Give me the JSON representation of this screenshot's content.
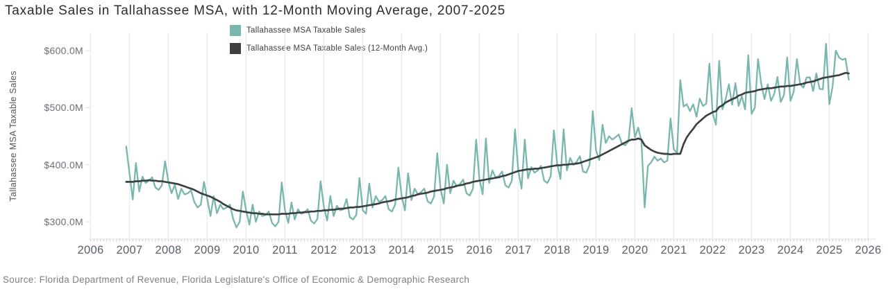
{
  "title": "Taxable Sales in Tallahassee MSA, with 12-Month Moving Average, 2007-2025",
  "source": "Source: Florida Department of Revenue, Florida Legislature's Office of Economic & Demographic Research",
  "colors": {
    "sales_line": "#79b6ae",
    "avg_line": "#3d4043",
    "gridline": "#eaeaed",
    "axis_line": "#dddde1"
  },
  "legend": [
    {
      "label": "Tallahassee MSA Taxable Sales",
      "color": "#79b6ae"
    },
    {
      "label": "Tallahassee MSA Taxable Sales (12-Month Avg.)",
      "color": "#3d4043"
    }
  ],
  "y_axis": {
    "title": "Tallahassee MSA Taxable Sales",
    "tick_labels": [
      "$600.0M",
      "$500.0M",
      "$400.0M",
      "$300.0M"
    ],
    "tick_values": [
      600,
      500,
      400,
      300
    ]
  },
  "x_axis": {
    "tick_labels": [
      "2006",
      "2007",
      "2008",
      "2009",
      "2010",
      "2011",
      "2012",
      "2013",
      "2014",
      "2015",
      "2016",
      "2017",
      "2018",
      "2019",
      "2020",
      "2021",
      "2022",
      "2023",
      "2024",
      "2025",
      "2026"
    ],
    "tick_values": [
      2006,
      2007,
      2008,
      2009,
      2010,
      2011,
      2012,
      2013,
      2014,
      2015,
      2016,
      2017,
      2018,
      2019,
      2020,
      2021,
      2022,
      2023,
      2024,
      2025,
      2026
    ]
  },
  "chart_data": {
    "type": "line",
    "title": "Taxable Sales in Tallahassee MSA, with 12-Month Moving Average, 2007-2025",
    "ylabel": "Tallahassee MSA Taxable Sales",
    "units": "USD millions",
    "x_start": "2006-12",
    "x_interval": "month",
    "xlim": [
      2006,
      2026
    ],
    "ylim": [
      270,
      631
    ],
    "grid": "vertical-years-only",
    "legend_position": "top-center",
    "series": [
      {
        "name": "Tallahassee MSA Taxable Sales",
        "color": "#79b6ae",
        "values": [
          432,
          385,
          339,
          403,
          353,
          379,
          368,
          372,
          378,
          360,
          356,
          364,
          406,
          370,
          350,
          365,
          340,
          358,
          348,
          350,
          355,
          335,
          325,
          330,
          370,
          340,
          310,
          345,
          315,
          330,
          322,
          325,
          330,
          305,
          290,
          300,
          353,
          320,
          295,
          330,
          300,
          318,
          310,
          312,
          318,
          298,
          292,
          300,
          369,
          320,
          298,
          334,
          304,
          322,
          314,
          316,
          322,
          302,
          297,
          305,
          371,
          326,
          302,
          345,
          310,
          328,
          320,
          322,
          340,
          308,
          304,
          312,
          377,
          320,
          314,
          367,
          325,
          345,
          335,
          338,
          345,
          322,
          318,
          330,
          395,
          345,
          320,
          385,
          338,
          358,
          348,
          352,
          358,
          336,
          332,
          344,
          420,
          358,
          332,
          400,
          350,
          372,
          362,
          366,
          374,
          350,
          346,
          358,
          444,
          375,
          348,
          446,
          368,
          390,
          378,
          380,
          388,
          364,
          360,
          372,
          462,
          390,
          358,
          444,
          376,
          396,
          386,
          390,
          398,
          372,
          368,
          380,
          460,
          402,
          375,
          462,
          390,
          412,
          400,
          405,
          415,
          388,
          386,
          400,
          494,
          425,
          408,
          470,
          438,
          450,
          444,
          448,
          453,
          437,
          434,
          441,
          499,
          448,
          465,
          442,
          325,
          398,
          404,
          414,
          407,
          411,
          404,
          407,
          481,
          427,
          421,
          548,
          502,
          506,
          494,
          506,
          484,
          516,
          503,
          507,
          577,
          490,
          470,
          582,
          497,
          515,
          541,
          505,
          543,
          503,
          520,
          497,
          592,
          489,
          500,
          585,
          541,
          515,
          541,
          512,
          524,
          554,
          510,
          522,
          588,
          512,
          528,
          585,
          541,
          535,
          553,
          553,
          529,
          560,
          533,
          532,
          612,
          506,
          537,
          600,
          588,
          584,
          586,
          549
        ]
      },
      {
        "name": "Tallahassee MSA Taxable Sales (12-Month Avg.)",
        "color": "#3d4043",
        "values": [
          370,
          370,
          370,
          371,
          371,
          372,
          372,
          373,
          372,
          372,
          371,
          371,
          370,
          369,
          368,
          367,
          366,
          364,
          362,
          360,
          358,
          356,
          353,
          350,
          348,
          346,
          344,
          341,
          338,
          335,
          331,
          328,
          325,
          322,
          320,
          319,
          318,
          317,
          316,
          315,
          315,
          314,
          314,
          313,
          313,
          313,
          313,
          313,
          314,
          314,
          314,
          315,
          315,
          316,
          316,
          317,
          317,
          318,
          318,
          319,
          319,
          320,
          320,
          321,
          321,
          322,
          323,
          323,
          324,
          325,
          325,
          326,
          326,
          327,
          328,
          329,
          330,
          331,
          332,
          334,
          335,
          336,
          337,
          339,
          340,
          341,
          342,
          343,
          345,
          346,
          348,
          349,
          350,
          351,
          353,
          354,
          355,
          356,
          357,
          359,
          360,
          361,
          363,
          364,
          365,
          367,
          368,
          370,
          371,
          372,
          373,
          374,
          375,
          376,
          377,
          378,
          380,
          381,
          383,
          385,
          387,
          389,
          390,
          391,
          392,
          392,
          393,
          393,
          394,
          395,
          396,
          397,
          398,
          399,
          399,
          400,
          400,
          401,
          401,
          402,
          403,
          405,
          407,
          409,
          411,
          413,
          415,
          418,
          421,
          424,
          427,
          430,
          433,
          436,
          439,
          442,
          444,
          444,
          446,
          444,
          434,
          430,
          426,
          423,
          421,
          420,
          419,
          419,
          418,
          419,
          419,
          419,
          436,
          448,
          456,
          463,
          471,
          476,
          481,
          486,
          489,
          492,
          494,
          501,
          504,
          509,
          512,
          515,
          517,
          521,
          523,
          526,
          527,
          528,
          529,
          531,
          532,
          533,
          534,
          534,
          535,
          536,
          537,
          537,
          538,
          538,
          539,
          540,
          541,
          542,
          544,
          545,
          546,
          548,
          550,
          552,
          553,
          554,
          555,
          556,
          557,
          559,
          561,
          560
        ]
      }
    ]
  }
}
